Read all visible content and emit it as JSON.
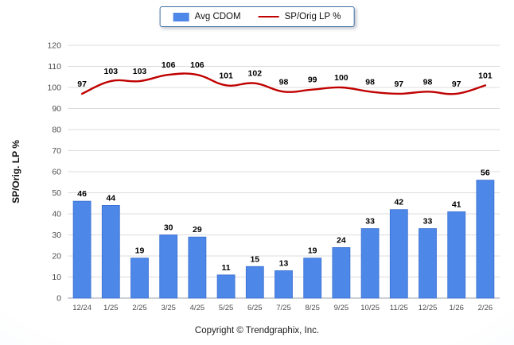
{
  "legend": {
    "bar_label": "Avg CDOM",
    "line_label": "SP/Orig LP %"
  },
  "ylabel": "SP/Orig. LP %",
  "footer": "Copyright © Trendgraphix, Inc.",
  "colors": {
    "bar": "#4d87e8",
    "bar_border": "#3a6fd0",
    "line": "#c00000",
    "grid": "#dcdcdc",
    "axis": "#9aa5b1",
    "label": "#000000",
    "tick": "#4d4d4d"
  },
  "chart_data": {
    "type": "bar+line",
    "categories": [
      "12/24",
      "1/25",
      "2/25",
      "3/25",
      "4/25",
      "5/25",
      "6/25",
      "7/25",
      "8/25",
      "9/25",
      "10/25",
      "11/25",
      "12/25",
      "1/26",
      "2/26"
    ],
    "series": [
      {
        "name": "Avg CDOM",
        "type": "bar",
        "values": [
          46,
          44,
          19,
          30,
          29,
          11,
          15,
          13,
          19,
          24,
          33,
          42,
          33,
          41,
          56
        ]
      },
      {
        "name": "SP/Orig LP %",
        "type": "line",
        "values": [
          97,
          103,
          103,
          106,
          106,
          101,
          102,
          98,
          99,
          100,
          98,
          97,
          98,
          97,
          101
        ]
      }
    ],
    "title": "",
    "xlabel": "",
    "ylabel": "SP/Orig. LP %",
    "ylim": [
      0,
      120
    ],
    "ytick_step": 10,
    "legend_position": "top",
    "grid": true
  }
}
